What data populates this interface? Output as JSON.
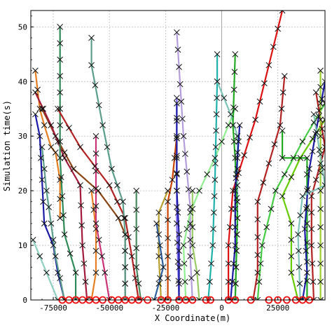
{
  "chart_data": {
    "type": "line",
    "title": "",
    "xlabel": "X Coordinate(m)",
    "ylabel": "Simulation time(s)",
    "xlim": [
      -85000,
      46000
    ],
    "ylim": [
      0,
      53
    ],
    "x_ticks": [
      {
        "value": -75000,
        "label": "-75000"
      },
      {
        "value": -50000,
        "label": "-50000"
      },
      {
        "value": -25000,
        "label": "-25000"
      },
      {
        "value": 0,
        "label": "0"
      },
      {
        "value": 25000,
        "label": "25000"
      }
    ],
    "y_ticks": [
      {
        "value": 0,
        "label": "0"
      },
      {
        "value": 10,
        "label": "10"
      },
      {
        "value": 20,
        "label": "20"
      },
      {
        "value": 30,
        "label": "30"
      },
      {
        "value": 40,
        "label": "40"
      },
      {
        "value": 50,
        "label": "50"
      }
    ],
    "grid": true,
    "legend": "none",
    "reference_line_x": 0,
    "origin_markers_x": [
      -71000,
      -68000,
      -65000,
      -62000,
      -59000,
      -56000,
      -53000,
      -49000,
      -46000,
      -43000,
      -40000,
      -37000,
      -33000,
      -27000,
      -24000,
      -19000,
      -16000,
      -13000,
      -7000,
      -5000,
      3000,
      6000,
      13000,
      21000,
      25000,
      29000,
      33000,
      36000,
      39000
    ],
    "series": [
      {
        "color": "#e67e22",
        "points": [
          [
            -83000,
            42
          ],
          [
            -81000,
            35
          ],
          [
            -79000,
            32
          ],
          [
            -76000,
            28
          ],
          [
            -74000,
            27
          ],
          [
            -72000,
            22
          ],
          [
            -72000,
            15
          ]
        ]
      },
      {
        "color": "#1a1aa6",
        "points": [
          [
            -83000,
            34
          ],
          [
            -81000,
            30
          ],
          [
            -80000,
            22
          ],
          [
            -79000,
            14
          ],
          [
            -75000,
            10
          ],
          [
            -73000,
            5
          ],
          [
            -70000,
            0
          ]
        ]
      },
      {
        "color": "#8b4513",
        "points": [
          [
            -80000,
            35
          ],
          [
            -74000,
            30
          ],
          [
            -66000,
            24
          ],
          [
            -55000,
            20
          ],
          [
            -46000,
            15
          ],
          [
            -43000,
            12
          ],
          [
            -43000,
            0
          ]
        ]
      },
      {
        "color": "#a31b3a",
        "points": [
          [
            -83000,
            38
          ],
          [
            -76000,
            32
          ],
          [
            -70000,
            26
          ],
          [
            -63000,
            21
          ],
          [
            -62000,
            10
          ],
          [
            -60000,
            0
          ]
        ]
      },
      {
        "color": "#5c9e8c",
        "points": [
          [
            -80000,
            28
          ],
          [
            -78000,
            20
          ],
          [
            -76000,
            14
          ],
          [
            -74000,
            8
          ],
          [
            -70000,
            0
          ]
        ]
      },
      {
        "color": "#8fcfbf",
        "points": [
          [
            -84000,
            11
          ],
          [
            -78000,
            5
          ],
          [
            -73000,
            0
          ]
        ]
      },
      {
        "color": "#2e8b57",
        "points": [
          [
            -72000,
            50
          ],
          [
            -72000,
            26
          ],
          [
            -70000,
            12
          ],
          [
            -65000,
            5
          ],
          [
            -65000,
            0
          ]
        ]
      },
      {
        "color": "#b22222",
        "points": [
          [
            -73000,
            35
          ],
          [
            -63000,
            28
          ],
          [
            -50000,
            21
          ],
          [
            -43000,
            15
          ],
          [
            -40000,
            8
          ],
          [
            -37000,
            0
          ]
        ]
      },
      {
        "color": "#e67e22",
        "points": [
          [
            -58000,
            20
          ],
          [
            -56000,
            13
          ],
          [
            -56000,
            5
          ],
          [
            -58000,
            0
          ]
        ]
      },
      {
        "color": "#cc3377",
        "points": [
          [
            -56000,
            30
          ],
          [
            -56000,
            14
          ],
          [
            -52000,
            5
          ],
          [
            -50000,
            0
          ]
        ]
      },
      {
        "color": "#5c9e8c",
        "points": [
          [
            -58000,
            48
          ],
          [
            -58000,
            43
          ],
          [
            -53000,
            32
          ],
          [
            -49000,
            24
          ],
          [
            -44000,
            18
          ],
          [
            -43000,
            12
          ],
          [
            -43000,
            0
          ]
        ]
      },
      {
        "color": "#4a8c5f",
        "points": [
          [
            -38000,
            20
          ],
          [
            -38000,
            6
          ],
          [
            -36000,
            0
          ]
        ]
      },
      {
        "color": "#b8a030",
        "points": [
          [
            -24000,
            20
          ],
          [
            -28000,
            16
          ],
          [
            -28000,
            8
          ],
          [
            -27000,
            0
          ]
        ]
      },
      {
        "color": "#2e5f9e",
        "points": [
          [
            -29000,
            14
          ],
          [
            -26000,
            6
          ],
          [
            -30000,
            0
          ]
        ]
      },
      {
        "color": "#cc4400",
        "points": [
          [
            -20000,
            30
          ],
          [
            -22000,
            22
          ],
          [
            -24000,
            18
          ],
          [
            -24000,
            8
          ],
          [
            -24000,
            0
          ]
        ]
      },
      {
        "color": "#7b68ee",
        "points": [
          [
            -20000,
            37
          ],
          [
            -20000,
            26
          ],
          [
            -20000,
            14
          ],
          [
            -19000,
            0
          ]
        ]
      },
      {
        "color": "#b39ddb",
        "points": [
          [
            -20000,
            49
          ],
          [
            -17000,
            30
          ],
          [
            -14000,
            17
          ],
          [
            -14000,
            8
          ],
          [
            -13000,
            0
          ]
        ]
      },
      {
        "color": "#1a1aa6",
        "points": [
          [
            -20000,
            36
          ],
          [
            -20000,
            20
          ],
          [
            -19000,
            12
          ],
          [
            -19000,
            0
          ]
        ]
      },
      {
        "color": "#90ee90",
        "points": [
          [
            6000,
            35
          ],
          [
            -3000,
            26
          ],
          [
            -10000,
            20
          ],
          [
            -14000,
            16
          ],
          [
            -17000,
            10
          ],
          [
            -16000,
            0
          ]
        ]
      },
      {
        "color": "#99cc66",
        "points": [
          [
            -13000,
            20
          ],
          [
            -13000,
            10
          ],
          [
            -11000,
            5
          ],
          [
            -10000,
            0
          ]
        ]
      },
      {
        "color": "#20b2aa",
        "points": [
          [
            -2000,
            45
          ],
          [
            -2000,
            40
          ],
          [
            -3000,
            22
          ],
          [
            -4000,
            10
          ],
          [
            -6000,
            0
          ]
        ]
      },
      {
        "color": "#7fc4b8",
        "points": [
          [
            -2000,
            40
          ],
          [
            4000,
            34
          ],
          [
            7000,
            30
          ],
          [
            7000,
            15
          ],
          [
            6000,
            0
          ]
        ]
      },
      {
        "color": "#22aa22",
        "points": [
          [
            6000,
            45
          ],
          [
            5000,
            32
          ],
          [
            6000,
            26
          ],
          [
            7000,
            15
          ],
          [
            6000,
            0
          ]
        ]
      },
      {
        "color": "#dd1111",
        "points": [
          [
            27000,
            53
          ],
          [
            15000,
            33
          ],
          [
            5000,
            20
          ],
          [
            3000,
            10
          ],
          [
            3000,
            0
          ]
        ]
      },
      {
        "color": "#1a1aa6",
        "points": [
          [
            8000,
            32
          ],
          [
            6000,
            20
          ],
          [
            6000,
            10
          ],
          [
            4000,
            0
          ]
        ]
      },
      {
        "color": "#b22222",
        "points": [
          [
            28000,
            41
          ],
          [
            26000,
            32
          ],
          [
            16000,
            18
          ],
          [
            16000,
            5
          ],
          [
            14000,
            0
          ]
        ]
      },
      {
        "color": "#44cc44",
        "points": [
          [
            46000,
            36
          ],
          [
            36000,
            29
          ],
          [
            24000,
            20
          ],
          [
            18000,
            10
          ],
          [
            16000,
            0
          ]
        ]
      },
      {
        "color": "#22aa22",
        "points": [
          [
            27000,
            31
          ],
          [
            27000,
            26
          ],
          [
            38000,
            26
          ],
          [
            38000,
            14
          ],
          [
            38000,
            0
          ]
        ]
      },
      {
        "color": "#66cc00",
        "points": [
          [
            46000,
            33
          ],
          [
            35000,
            26
          ],
          [
            27000,
            19
          ],
          [
            31000,
            14
          ],
          [
            31000,
            5
          ],
          [
            34000,
            0
          ]
        ]
      },
      {
        "color": "#1a1aa6",
        "points": [
          [
            46000,
            40
          ],
          [
            39000,
            24
          ],
          [
            37000,
            13
          ],
          [
            38000,
            5
          ],
          [
            36000,
            0
          ]
        ]
      },
      {
        "color": "#b22222",
        "points": [
          [
            42000,
            38
          ],
          [
            46000,
            28
          ],
          [
            40000,
            19
          ],
          [
            40000,
            10
          ],
          [
            41000,
            0
          ]
        ]
      },
      {
        "color": "#9acd32",
        "points": [
          [
            44000,
            42
          ],
          [
            44000,
            30
          ],
          [
            44000,
            20
          ],
          [
            44000,
            0
          ]
        ]
      },
      {
        "color": "#7fc4b8",
        "points": [
          [
            41000,
            34
          ],
          [
            46000,
            21
          ],
          [
            36000,
            19
          ],
          [
            34000,
            12
          ],
          [
            35000,
            0
          ]
        ]
      }
    ]
  }
}
